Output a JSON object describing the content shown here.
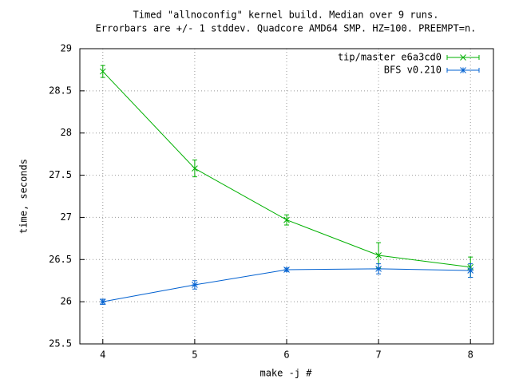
{
  "chart_data": {
    "type": "line",
    "title": "Timed \"allnoconfig\" kernel build. Median over 9 runs.",
    "subtitle": "Errorbars are +/- 1 stddev. Quadcore AMD64 SMP. HZ=100. PREEMPT=n.",
    "x_label": "make -j #",
    "y_label": "time, seconds",
    "x": [
      4,
      5,
      6,
      7,
      8
    ],
    "series": [
      {
        "name": "tip/master e6a3cd0",
        "color": "#00b000",
        "marker": "x",
        "values": [
          28.73,
          27.58,
          26.97,
          26.55,
          26.41
        ],
        "errors": [
          0.07,
          0.1,
          0.06,
          0.15,
          0.12
        ]
      },
      {
        "name": "BFS v0.210",
        "color": "#0060d0",
        "marker": "*",
        "values": [
          26.0,
          26.2,
          26.38,
          26.39,
          26.37
        ],
        "errors": [
          0.03,
          0.05,
          0.02,
          0.06,
          0.08
        ]
      }
    ],
    "xlim": [
      3.75,
      8.25
    ],
    "ylim": [
      25.5,
      29
    ],
    "xticks": [
      4,
      5,
      6,
      7,
      8
    ],
    "yticks": [
      25.5,
      26,
      26.5,
      27,
      27.5,
      28,
      28.5,
      29
    ],
    "grid": true,
    "legend": "top-right"
  }
}
